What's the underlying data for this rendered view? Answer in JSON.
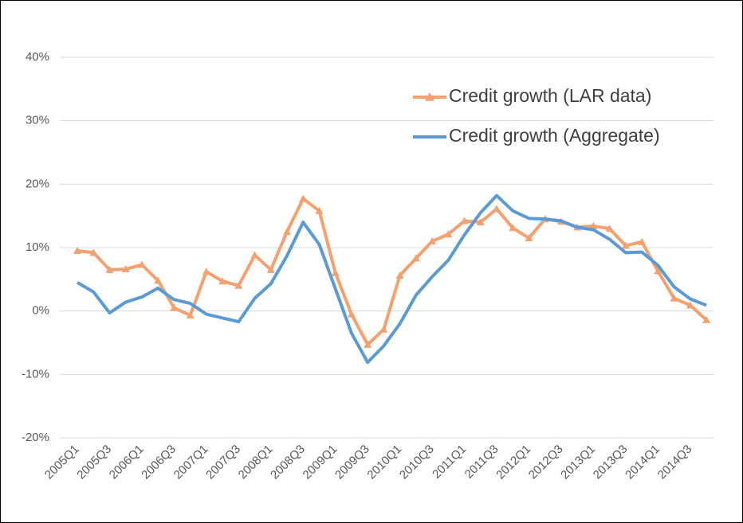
{
  "chart_data": {
    "type": "line",
    "categories": [
      "2005Q1",
      null,
      "2005Q3",
      null,
      "2006Q1",
      null,
      "2006Q3",
      null,
      "2007Q1",
      null,
      "2007Q3",
      null,
      "2008Q1",
      null,
      "2008Q3",
      null,
      "2009Q1",
      null,
      "2009Q3",
      null,
      "2010Q1",
      null,
      "2010Q3",
      null,
      "2011Q1",
      null,
      "2011Q3",
      null,
      "2012Q1",
      null,
      "2012Q3",
      null,
      "2013Q1",
      null,
      "2013Q3",
      null,
      "2014Q1",
      null,
      "2014Q3",
      null
    ],
    "series": [
      {
        "name": "Credit growth (LAR data)",
        "color": "#f4a06f",
        "marker": "triangle",
        "values": [
          9.5,
          9.2,
          6.5,
          6.6,
          7.3,
          4.8,
          0.5,
          -0.7,
          6.2,
          4.7,
          4.0,
          8.8,
          6.5,
          12.5,
          17.7,
          15.8,
          6.0,
          -0.5,
          -5.3,
          -2.9,
          5.6,
          8.3,
          11.0,
          12.1,
          14.2,
          14.0,
          16.1,
          13.1,
          11.5,
          14.5,
          14.1,
          13.2,
          13.4,
          13.0,
          10.3,
          10.9,
          6.3,
          2.0,
          0.9,
          -1.4
        ]
      },
      {
        "name": "Credit growth (Aggregate)",
        "color": "#5b9bd5",
        "marker": "none",
        "values": [
          4.5,
          3.0,
          -0.3,
          1.4,
          2.2,
          3.6,
          1.8,
          1.2,
          -0.5,
          -1.1,
          -1.7,
          2.0,
          4.3,
          8.7,
          14.0,
          10.5,
          3.5,
          -3.5,
          -8.1,
          -5.5,
          -2.0,
          2.5,
          5.4,
          8.0,
          12.0,
          15.5,
          18.2,
          15.8,
          14.6,
          14.5,
          14.2,
          13.2,
          12.8,
          11.3,
          9.2,
          9.3,
          7.2,
          3.8,
          1.9,
          0.9
        ]
      }
    ],
    "ylim": [
      -20,
      40
    ],
    "yticks": [
      {
        "value": -20,
        "label": "-20%"
      },
      {
        "value": -10,
        "label": "-10%"
      },
      {
        "value": 0,
        "label": "0%"
      },
      {
        "value": 10,
        "label": "10%"
      },
      {
        "value": 20,
        "label": "20%"
      },
      {
        "value": 30,
        "label": "30%"
      },
      {
        "value": 40,
        "label": "40%"
      }
    ],
    "grid": true,
    "legend": "upper-right"
  }
}
